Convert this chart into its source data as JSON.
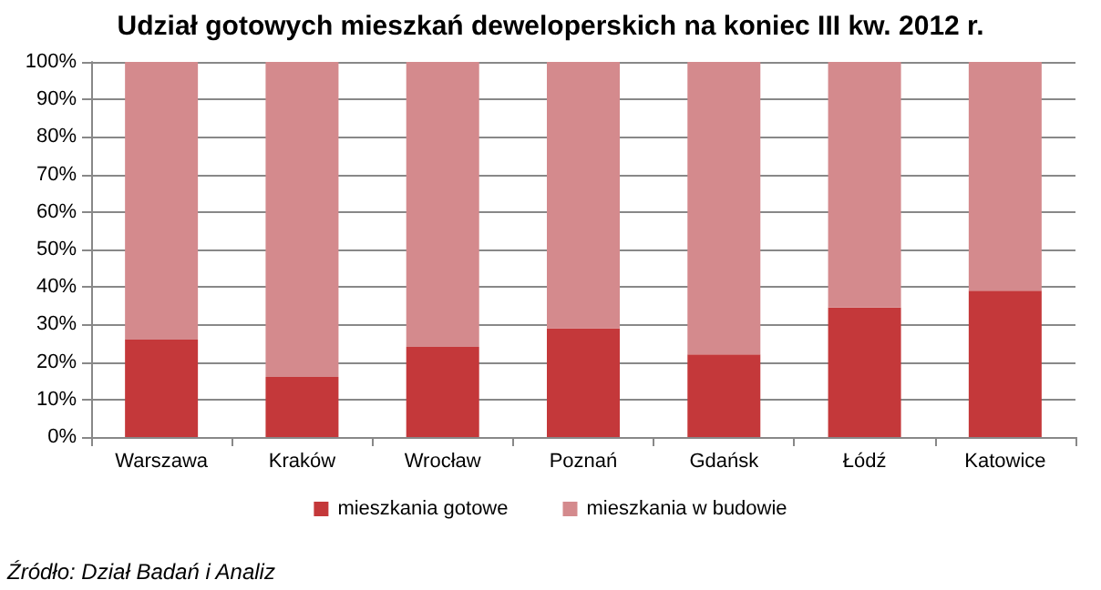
{
  "chart_data": {
    "type": "bar",
    "title": "Udział gotowych mieszkań deweloperskich na koniec III kw. 2012 r.",
    "categories": [
      "Warszawa",
      "Kraków",
      "Wrocław",
      "Poznań",
      "Gdańsk",
      "Łódź",
      "Katowice"
    ],
    "series": [
      {
        "name": "mieszkania gotowe",
        "color": "#c4383a",
        "values": [
          26,
          16,
          24,
          29,
          22,
          34.5,
          39
        ]
      },
      {
        "name": "mieszkania w budowie",
        "color": "#d48a8d",
        "values": [
          74,
          84,
          76,
          71,
          78,
          65.5,
          61
        ]
      }
    ],
    "stacked": true,
    "ylim": [
      0,
      100
    ],
    "yticks": [
      {
        "value": 0,
        "label": "0%"
      },
      {
        "value": 10,
        "label": "10%"
      },
      {
        "value": 20,
        "label": "20%"
      },
      {
        "value": 30,
        "label": "30%"
      },
      {
        "value": 40,
        "label": "40%"
      },
      {
        "value": 50,
        "label": "50%"
      },
      {
        "value": 60,
        "label": "60%"
      },
      {
        "value": 70,
        "label": "70%"
      },
      {
        "value": 80,
        "label": "80%"
      },
      {
        "value": 90,
        "label": "90%"
      },
      {
        "value": 100,
        "label": "100%"
      }
    ],
    "grid": "y",
    "legend": "bottom",
    "annotations": [
      "Źródło: Dział Badań i Analiz"
    ]
  }
}
